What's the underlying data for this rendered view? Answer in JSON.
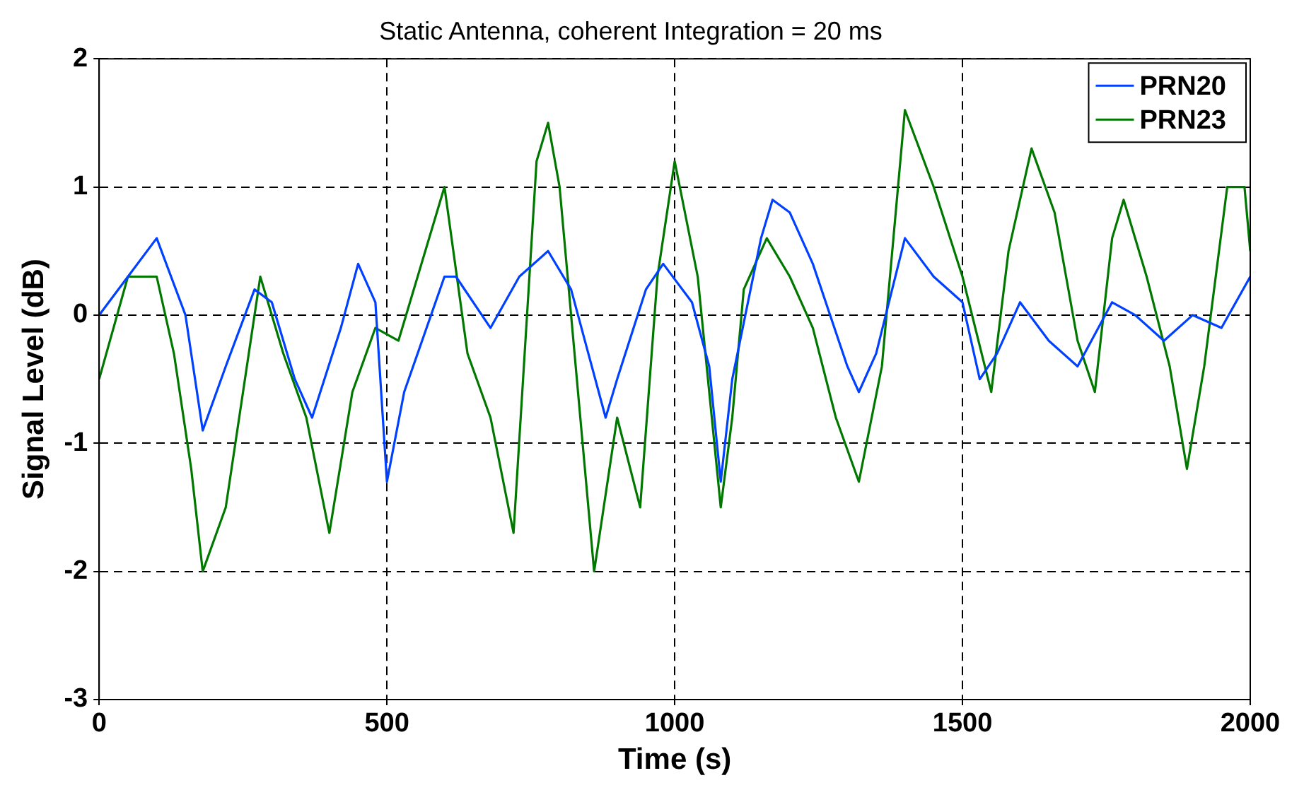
{
  "chart_data": {
    "type": "line",
    "title": "Static Antenna, coherent Integration = 20 ms",
    "xlabel": "Time (s)",
    "ylabel": "Signal Level (dB)",
    "xlim": [
      0,
      2000
    ],
    "xticks": [
      0,
      500,
      1000,
      1500,
      2000
    ],
    "ylim": [
      -3,
      2
    ],
    "yticks": [
      -3,
      -2,
      -1,
      0,
      1,
      2
    ],
    "grid": true,
    "legend": "top right",
    "line_style": "solid",
    "marker": "none",
    "series": [
      {
        "name": "PRN20",
        "color": "#0040ff",
        "x": [
          0,
          50,
          100,
          150,
          180,
          220,
          270,
          300,
          340,
          370,
          420,
          450,
          480,
          500,
          530,
          600,
          620,
          680,
          730,
          780,
          820,
          850,
          880,
          900,
          950,
          980,
          1030,
          1060,
          1080,
          1100,
          1150,
          1170,
          1200,
          1240,
          1300,
          1320,
          1350,
          1400,
          1450,
          1500,
          1530,
          1560,
          1600,
          1650,
          1700,
          1760,
          1800,
          1850,
          1900,
          1950,
          2000
        ],
        "values": [
          0,
          0.3,
          0.6,
          0,
          -0.9,
          -0.4,
          0.2,
          0.1,
          -0.5,
          -0.8,
          -0.1,
          0.4,
          0.1,
          -1.3,
          -0.6,
          0.3,
          0.3,
          -0.1,
          0.3,
          0.5,
          0.2,
          -0.3,
          -0.8,
          -0.5,
          0.2,
          0.4,
          0.1,
          -0.4,
          -1.3,
          -0.5,
          0.6,
          0.9,
          0.8,
          0.4,
          -0.4,
          -0.6,
          -0.3,
          0.6,
          0.3,
          0.1,
          -0.5,
          -0.3,
          0.1,
          -0.2,
          -0.4,
          0.1,
          0,
          -0.2,
          0,
          -0.1,
          0.3
        ]
      },
      {
        "name": "PRN23",
        "color": "#007800",
        "x": [
          0,
          50,
          100,
          130,
          160,
          180,
          220,
          260,
          280,
          320,
          360,
          400,
          440,
          480,
          520,
          580,
          600,
          640,
          680,
          720,
          760,
          780,
          800,
          840,
          860,
          900,
          940,
          970,
          1000,
          1040,
          1080,
          1100,
          1120,
          1160,
          1200,
          1240,
          1280,
          1320,
          1360,
          1400,
          1450,
          1500,
          1550,
          1580,
          1620,
          1660,
          1700,
          1730,
          1760,
          1780,
          1820,
          1860,
          1890,
          1920,
          1960,
          1990,
          2000
        ],
        "values": [
          -0.5,
          0.3,
          0.3,
          -0.3,
          -1.2,
          -2,
          -1.5,
          -0.3,
          0.3,
          -0.3,
          -0.8,
          -1.7,
          -0.6,
          -0.1,
          -0.2,
          0.7,
          1,
          -0.3,
          -0.8,
          -1.7,
          1.2,
          1.5,
          1,
          -1,
          -2,
          -0.8,
          -1.5,
          0.3,
          1.2,
          0.3,
          -1.5,
          -0.8,
          0.2,
          0.6,
          0.3,
          -0.1,
          -0.8,
          -1.3,
          -0.4,
          1.6,
          1,
          0.3,
          -0.6,
          0.5,
          1.3,
          0.8,
          -0.2,
          -0.6,
          0.6,
          0.9,
          0.3,
          -0.4,
          -1.2,
          -0.4,
          1,
          1,
          0.5
        ]
      }
    ]
  }
}
